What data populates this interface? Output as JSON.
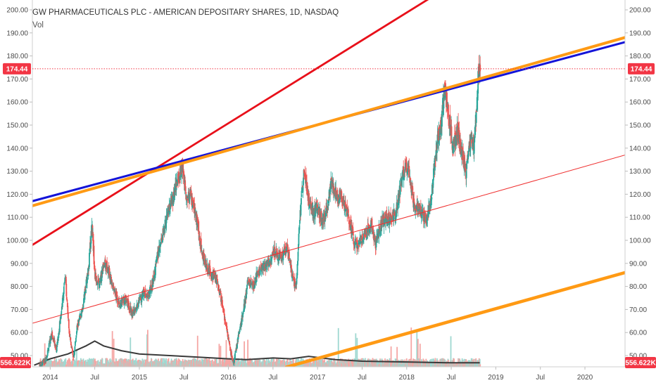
{
  "header": {
    "title": "GW PHARMACEUTICALS PLC - AMERICAN DEPOSITARY SHARES, 1D, NASDAQ",
    "volume_label": "Vol"
  },
  "price_badge": {
    "label": "174.44",
    "value": 174.44,
    "color": "#f23645"
  },
  "volume_badge": {
    "label": "556.622K",
    "color": "#f23645"
  },
  "colors": {
    "up": "#26a69a",
    "down": "#ef5350",
    "up_vol": "#9fd8d1",
    "down_vol": "#f5a6a4",
    "red_line": "#e8101a",
    "blue_line": "#1414d8",
    "orange_line": "#ff9a14",
    "thin_red": "#ef3030",
    "volume_ma": "#3a3a3a",
    "axis_text": "#4a4a4a"
  },
  "chart_data": {
    "type": "candlestick",
    "title": "GW PHARMACEUTICALS PLC - AMERICAN DEPOSITARY SHARES, 1D, NASDAQ",
    "ylim": [
      45,
      205
    ],
    "y_ticks": [
      "200.00",
      "190.00",
      "180.00",
      "170.00",
      "160.00",
      "150.00",
      "140.00",
      "130.00",
      "120.00",
      "110.00",
      "100.00",
      "90.00",
      "80.00",
      "70.00",
      "60.00",
      "50.00"
    ],
    "x_ticks": [
      "2014",
      "Jul",
      "2015",
      "Jul",
      "2016",
      "Jul",
      "2017",
      "Jul",
      "2018",
      "Jul",
      "2019",
      "Jul",
      "2020"
    ],
    "x_tick_positions": [
      2014.0,
      2014.5,
      2015.0,
      2015.5,
      2016.0,
      2016.5,
      2017.0,
      2017.5,
      2018.0,
      2018.5,
      2019.0,
      2019.5,
      2020.0
    ],
    "xlim": [
      2013.8,
      2020.45
    ],
    "last_price": 174.44,
    "price_path": [
      [
        2013.88,
        46
      ],
      [
        2013.95,
        48
      ],
      [
        2014.02,
        60
      ],
      [
        2014.07,
        52
      ],
      [
        2014.12,
        68
      ],
      [
        2014.17,
        84
      ],
      [
        2014.21,
        62
      ],
      [
        2014.26,
        48
      ],
      [
        2014.3,
        62
      ],
      [
        2014.35,
        68
      ],
      [
        2014.38,
        75
      ],
      [
        2014.43,
        88
      ],
      [
        2014.47,
        108
      ],
      [
        2014.5,
        85
      ],
      [
        2014.55,
        80
      ],
      [
        2014.6,
        90
      ],
      [
        2014.65,
        88
      ],
      [
        2014.7,
        80
      ],
      [
        2014.78,
        72
      ],
      [
        2014.85,
        75
      ],
      [
        2014.92,
        68
      ],
      [
        2014.98,
        72
      ],
      [
        2015.05,
        78
      ],
      [
        2015.1,
        76
      ],
      [
        2015.15,
        82
      ],
      [
        2015.2,
        92
      ],
      [
        2015.25,
        100
      ],
      [
        2015.32,
        112
      ],
      [
        2015.38,
        118
      ],
      [
        2015.42,
        125
      ],
      [
        2015.48,
        132
      ],
      [
        2015.52,
        120
      ],
      [
        2015.58,
        118
      ],
      [
        2015.65,
        108
      ],
      [
        2015.7,
        95
      ],
      [
        2015.76,
        88
      ],
      [
        2015.82,
        85
      ],
      [
        2015.88,
        82
      ],
      [
        2015.95,
        68
      ],
      [
        2016.02,
        52
      ],
      [
        2016.06,
        47
      ],
      [
        2016.12,
        60
      ],
      [
        2016.18,
        72
      ],
      [
        2016.22,
        82
      ],
      [
        2016.28,
        80
      ],
      [
        2016.32,
        85
      ],
      [
        2016.38,
        88
      ],
      [
        2016.45,
        90
      ],
      [
        2016.52,
        95
      ],
      [
        2016.6,
        93
      ],
      [
        2016.66,
        98
      ],
      [
        2016.72,
        83
      ],
      [
        2016.76,
        80
      ],
      [
        2016.8,
        110
      ],
      [
        2016.85,
        130
      ],
      [
        2016.9,
        118
      ],
      [
        2016.95,
        112
      ],
      [
        2017.0,
        115
      ],
      [
        2017.05,
        108
      ],
      [
        2017.1,
        112
      ],
      [
        2017.15,
        125
      ],
      [
        2017.2,
        120
      ],
      [
        2017.28,
        118
      ],
      [
        2017.35,
        110
      ],
      [
        2017.42,
        98
      ],
      [
        2017.48,
        100
      ],
      [
        2017.55,
        103
      ],
      [
        2017.6,
        108
      ],
      [
        2017.65,
        98
      ],
      [
        2017.72,
        108
      ],
      [
        2017.8,
        110
      ],
      [
        2017.88,
        112
      ],
      [
        2017.95,
        128
      ],
      [
        2018.02,
        133
      ],
      [
        2018.08,
        115
      ],
      [
        2018.15,
        112
      ],
      [
        2018.22,
        108
      ],
      [
        2018.28,
        120
      ],
      [
        2018.33,
        140
      ],
      [
        2018.38,
        150
      ],
      [
        2018.43,
        165
      ],
      [
        2018.47,
        155
      ],
      [
        2018.52,
        140
      ],
      [
        2018.57,
        148
      ],
      [
        2018.62,
        138
      ],
      [
        2018.67,
        130
      ],
      [
        2018.72,
        145
      ],
      [
        2018.76,
        142
      ],
      [
        2018.79,
        162
      ],
      [
        2018.81,
        176
      ],
      [
        2018.82,
        172
      ],
      [
        2018.825,
        174.44
      ]
    ],
    "volume_ma_path": [
      [
        2013.82,
        0.2
      ],
      [
        2014.0,
        1.0
      ],
      [
        2014.2,
        1.6
      ],
      [
        2014.4,
        2.6
      ],
      [
        2014.5,
        3.2
      ],
      [
        2014.6,
        2.6
      ],
      [
        2014.8,
        2.0
      ],
      [
        2015.0,
        1.6
      ],
      [
        2015.5,
        1.3
      ],
      [
        2016.0,
        1.0
      ],
      [
        2016.2,
        0.9
      ],
      [
        2016.5,
        1.1
      ],
      [
        2016.7,
        1.0
      ],
      [
        2016.9,
        1.3
      ],
      [
        2017.2,
        0.9
      ],
      [
        2017.5,
        0.7
      ],
      [
        2018.0,
        0.6
      ],
      [
        2018.5,
        0.5
      ],
      [
        2018.82,
        0.5
      ]
    ],
    "trendlines": [
      {
        "color_key": "red_line",
        "width": 2.8,
        "points": [
          [
            2013.8,
            98
          ],
          [
            2018.55,
            212
          ]
        ]
      },
      {
        "color_key": "blue_line",
        "width": 3,
        "points": [
          [
            2013.8,
            117
          ],
          [
            2020.45,
            186
          ]
        ]
      },
      {
        "color_key": "orange_line",
        "width": 4,
        "points": [
          [
            2013.8,
            115
          ],
          [
            2020.45,
            188
          ]
        ]
      },
      {
        "color_key": "thin_red",
        "width": 1,
        "points": [
          [
            2013.8,
            64
          ],
          [
            2020.45,
            137
          ]
        ]
      },
      {
        "color_key": "orange_line",
        "width": 4.5,
        "points": [
          [
            2016.65,
            45
          ],
          [
            2020.45,
            86
          ]
        ]
      }
    ]
  }
}
